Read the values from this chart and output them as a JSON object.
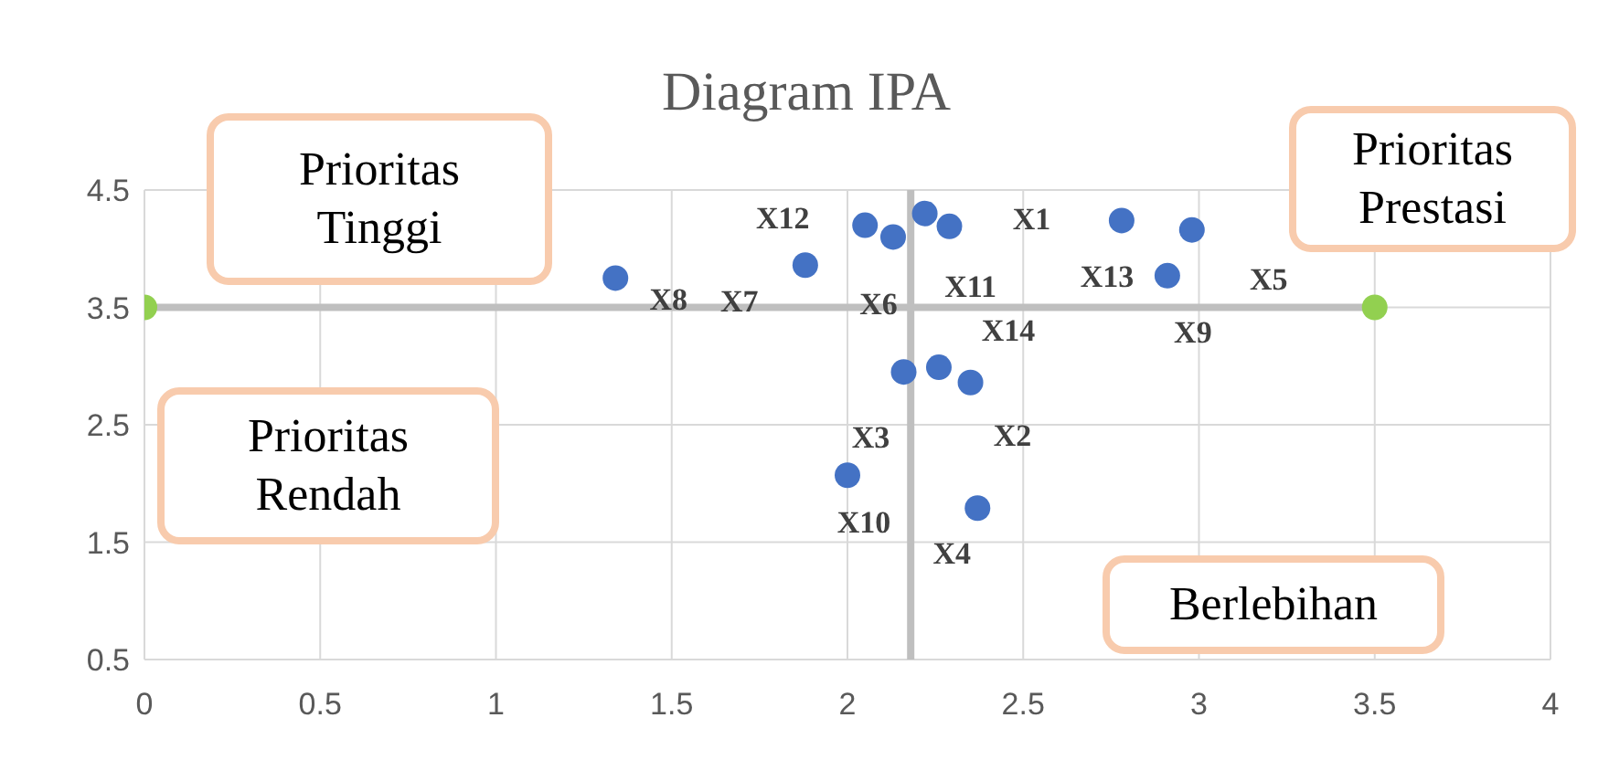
{
  "chart_data": {
    "type": "scatter",
    "title": "Diagram IPA",
    "xlim": [
      0,
      4
    ],
    "xticks": [
      0,
      0.5,
      1,
      1.5,
      2,
      2.5,
      3,
      3.5,
      4
    ],
    "ylim": [
      0.5,
      4.5
    ],
    "yticks": [
      0.5,
      1.5,
      2.5,
      3.5,
      4.5
    ],
    "grid": true,
    "legend": false,
    "marker": "circle",
    "series": [
      {
        "type": "line",
        "color": "#bfbfbf",
        "marker": "none",
        "x": [
          0,
          3.5
        ],
        "values": [
          3.5,
          3.5
        ]
      },
      {
        "type": "scatter",
        "color": "#92d050",
        "x": [
          0,
          3.5
        ],
        "values": [
          3.5,
          3.5
        ]
      },
      {
        "type": "scatter",
        "color": "#4472c4",
        "x": [
          2.29,
          2.35,
          2.16,
          2.37,
          2.98,
          2.13,
          1.88,
          1.34,
          2.91,
          2.0,
          2.22,
          2.05,
          2.78,
          2.26
        ],
        "values": [
          4.19,
          2.86,
          2.95,
          1.79,
          4.16,
          4.1,
          3.86,
          3.75,
          3.77,
          2.07,
          4.3,
          4.2,
          4.24,
          2.99
        ]
      }
    ],
    "ref_lines": [
      {
        "axis": "x",
        "value": 2.18,
        "color": "#bfbfbf"
      }
    ],
    "annotations": [
      {
        "text": "X1",
        "x": 2.29,
        "y": 4.19
      },
      {
        "text": "X2",
        "x": 2.35,
        "y": 2.86
      },
      {
        "text": "X3",
        "x": 2.16,
        "y": 2.95
      },
      {
        "text": "X4",
        "x": 2.37,
        "y": 1.79
      },
      {
        "text": "X5",
        "x": 2.98,
        "y": 4.16
      },
      {
        "text": "X6",
        "x": 2.13,
        "y": 4.1
      },
      {
        "text": "X7",
        "x": 1.88,
        "y": 3.86
      },
      {
        "text": "X8",
        "x": 1.34,
        "y": 3.75
      },
      {
        "text": "X9",
        "x": 2.91,
        "y": 3.77
      },
      {
        "text": "X10",
        "x": 2.0,
        "y": 2.07
      },
      {
        "text": "X11",
        "x": 2.22,
        "y": 4.3
      },
      {
        "text": "X12",
        "x": 2.05,
        "y": 4.2
      },
      {
        "text": "X13",
        "x": 2.78,
        "y": 4.24
      },
      {
        "text": "X14",
        "x": 2.26,
        "y": 2.99
      },
      "Prioritas Tinggi",
      "Prioritas Prestasi",
      "Prioritas Rendah",
      "Berlebihan"
    ]
  }
}
